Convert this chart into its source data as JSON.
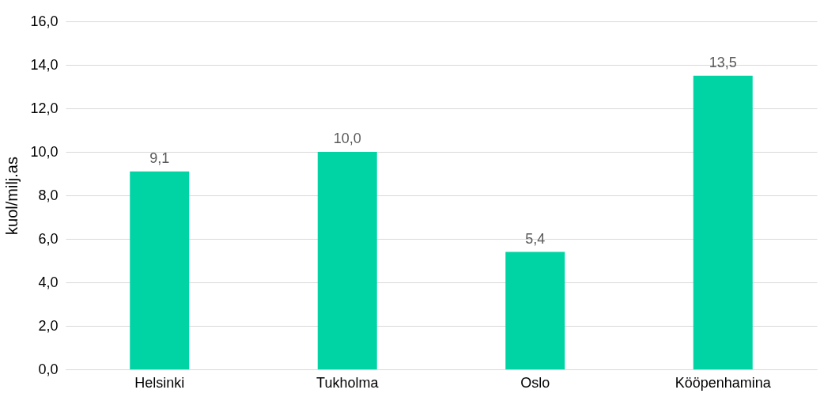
{
  "chart_data": {
    "type": "bar",
    "ylabel": "kuol/milj.as",
    "categories": [
      "Helsinki",
      "Tukholma",
      "Oslo",
      "Kööpenhamina"
    ],
    "values": [
      9.1,
      10.0,
      5.4,
      13.5
    ],
    "value_labels": [
      "9,1",
      "10,0",
      "5,4",
      "13,5"
    ],
    "color": "#00d4a4",
    "ylim": [
      0,
      16
    ],
    "yticks": [
      {
        "value": 0,
        "label": "0,0"
      },
      {
        "value": 2,
        "label": "2,0"
      },
      {
        "value": 4,
        "label": "4,0"
      },
      {
        "value": 6,
        "label": "6,0"
      },
      {
        "value": 8,
        "label": "8,0"
      },
      {
        "value": 10,
        "label": "10,0"
      },
      {
        "value": 12,
        "label": "12,0"
      },
      {
        "value": 14,
        "label": "14,0"
      },
      {
        "value": 16,
        "label": "16,0"
      }
    ],
    "grid": "y"
  }
}
